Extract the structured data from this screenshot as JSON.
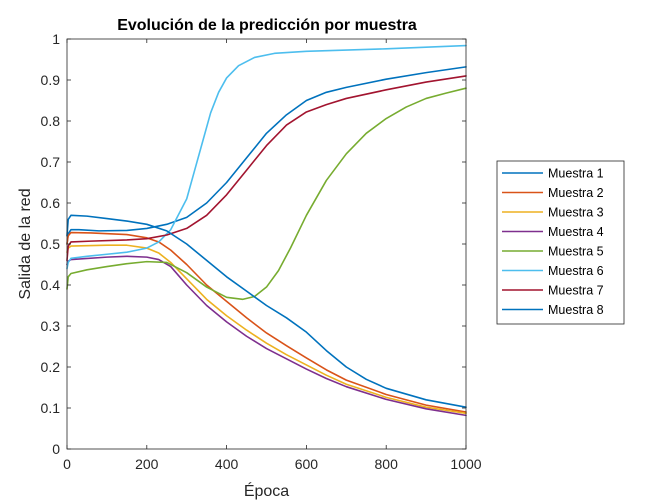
{
  "chart_data": {
    "type": "line",
    "title": "Evolución de la predicción por muestra",
    "xlabel": "Época",
    "ylabel": "Salida de la red",
    "xlim": [
      0,
      1000
    ],
    "ylim": [
      0,
      1
    ],
    "xticks": [
      "0",
      "200",
      "400",
      "600",
      "800",
      "1000"
    ],
    "yticks": [
      "0",
      "0.1",
      "0.2",
      "0.3",
      "0.4",
      "0.5",
      "0.6",
      "0.7",
      "0.8",
      "0.9",
      "1"
    ],
    "grid": false,
    "legend_position": "right",
    "series": [
      {
        "name": "Muestra 1",
        "color": "#0072BD",
        "points": [
          [
            0,
            0.5
          ],
          [
            3,
            0.525
          ],
          [
            10,
            0.535
          ],
          [
            30,
            0.535
          ],
          [
            80,
            0.532
          ],
          [
            150,
            0.533
          ],
          [
            200,
            0.538
          ],
          [
            250,
            0.548
          ],
          [
            300,
            0.565
          ],
          [
            350,
            0.6
          ],
          [
            400,
            0.65
          ],
          [
            450,
            0.71
          ],
          [
            500,
            0.77
          ],
          [
            550,
            0.815
          ],
          [
            600,
            0.85
          ],
          [
            650,
            0.87
          ],
          [
            700,
            0.882
          ],
          [
            800,
            0.902
          ],
          [
            900,
            0.918
          ],
          [
            1000,
            0.932
          ]
        ]
      },
      {
        "name": "Muestra 2",
        "color": "#D95319",
        "points": [
          [
            0,
            0.5
          ],
          [
            3,
            0.52
          ],
          [
            10,
            0.528
          ],
          [
            60,
            0.527
          ],
          [
            150,
            0.523
          ],
          [
            200,
            0.515
          ],
          [
            230,
            0.505
          ],
          [
            260,
            0.485
          ],
          [
            300,
            0.45
          ],
          [
            350,
            0.4
          ],
          [
            400,
            0.36
          ],
          [
            450,
            0.32
          ],
          [
            500,
            0.283
          ],
          [
            550,
            0.252
          ],
          [
            600,
            0.222
          ],
          [
            650,
            0.193
          ],
          [
            700,
            0.168
          ],
          [
            800,
            0.133
          ],
          [
            900,
            0.107
          ],
          [
            1000,
            0.09
          ]
        ]
      },
      {
        "name": "Muestra 3",
        "color": "#EDB120",
        "points": [
          [
            0,
            0.48
          ],
          [
            3,
            0.49
          ],
          [
            10,
            0.495
          ],
          [
            100,
            0.497
          ],
          [
            150,
            0.497
          ],
          [
            200,
            0.49
          ],
          [
            230,
            0.478
          ],
          [
            260,
            0.455
          ],
          [
            300,
            0.415
          ],
          [
            350,
            0.365
          ],
          [
            400,
            0.325
          ],
          [
            450,
            0.29
          ],
          [
            500,
            0.258
          ],
          [
            550,
            0.23
          ],
          [
            600,
            0.205
          ],
          [
            650,
            0.18
          ],
          [
            700,
            0.158
          ],
          [
            800,
            0.126
          ],
          [
            900,
            0.102
          ],
          [
            1000,
            0.087
          ]
        ]
      },
      {
        "name": "Muestra 4",
        "color": "#7E2F8E",
        "points": [
          [
            0,
            0.45
          ],
          [
            3,
            0.458
          ],
          [
            10,
            0.462
          ],
          [
            100,
            0.468
          ],
          [
            150,
            0.47
          ],
          [
            200,
            0.468
          ],
          [
            230,
            0.462
          ],
          [
            260,
            0.445
          ],
          [
            300,
            0.4
          ],
          [
            350,
            0.35
          ],
          [
            400,
            0.31
          ],
          [
            450,
            0.275
          ],
          [
            500,
            0.245
          ],
          [
            550,
            0.22
          ],
          [
            600,
            0.195
          ],
          [
            650,
            0.172
          ],
          [
            700,
            0.152
          ],
          [
            800,
            0.121
          ],
          [
            900,
            0.098
          ],
          [
            1000,
            0.082
          ]
        ]
      },
      {
        "name": "Muestra 5",
        "color": "#77AC30",
        "points": [
          [
            0,
            0.39
          ],
          [
            3,
            0.42
          ],
          [
            10,
            0.428
          ],
          [
            50,
            0.437
          ],
          [
            100,
            0.445
          ],
          [
            150,
            0.452
          ],
          [
            200,
            0.457
          ],
          [
            250,
            0.455
          ],
          [
            300,
            0.43
          ],
          [
            350,
            0.395
          ],
          [
            400,
            0.37
          ],
          [
            440,
            0.365
          ],
          [
            470,
            0.372
          ],
          [
            500,
            0.395
          ],
          [
            530,
            0.435
          ],
          [
            560,
            0.49
          ],
          [
            600,
            0.57
          ],
          [
            650,
            0.655
          ],
          [
            700,
            0.72
          ],
          [
            750,
            0.77
          ],
          [
            800,
            0.806
          ],
          [
            850,
            0.834
          ],
          [
            900,
            0.855
          ],
          [
            950,
            0.868
          ],
          [
            1000,
            0.88
          ]
        ]
      },
      {
        "name": "Muestra 6",
        "color": "#4DBEEE",
        "points": [
          [
            0,
            0.44
          ],
          [
            3,
            0.455
          ],
          [
            10,
            0.465
          ],
          [
            50,
            0.47
          ],
          [
            100,
            0.475
          ],
          [
            150,
            0.48
          ],
          [
            200,
            0.49
          ],
          [
            230,
            0.505
          ],
          [
            260,
            0.535
          ],
          [
            300,
            0.61
          ],
          [
            320,
            0.68
          ],
          [
            340,
            0.75
          ],
          [
            360,
            0.82
          ],
          [
            380,
            0.87
          ],
          [
            400,
            0.905
          ],
          [
            430,
            0.935
          ],
          [
            470,
            0.955
          ],
          [
            520,
            0.965
          ],
          [
            600,
            0.97
          ],
          [
            700,
            0.973
          ],
          [
            800,
            0.976
          ],
          [
            900,
            0.98
          ],
          [
            1000,
            0.984
          ]
        ]
      },
      {
        "name": "Muestra 7",
        "color": "#A2142F",
        "points": [
          [
            0,
            0.46
          ],
          [
            3,
            0.495
          ],
          [
            10,
            0.505
          ],
          [
            60,
            0.507
          ],
          [
            150,
            0.51
          ],
          [
            200,
            0.513
          ],
          [
            250,
            0.522
          ],
          [
            300,
            0.538
          ],
          [
            350,
            0.57
          ],
          [
            400,
            0.62
          ],
          [
            450,
            0.68
          ],
          [
            500,
            0.74
          ],
          [
            550,
            0.79
          ],
          [
            600,
            0.822
          ],
          [
            650,
            0.84
          ],
          [
            700,
            0.855
          ],
          [
            800,
            0.876
          ],
          [
            900,
            0.895
          ],
          [
            1000,
            0.91
          ]
        ]
      },
      {
        "name": "Muestra 8",
        "color": "#0072BD",
        "points": [
          [
            0,
            0.52
          ],
          [
            3,
            0.56
          ],
          [
            10,
            0.57
          ],
          [
            50,
            0.568
          ],
          [
            100,
            0.562
          ],
          [
            150,
            0.556
          ],
          [
            200,
            0.548
          ],
          [
            250,
            0.532
          ],
          [
            300,
            0.5
          ],
          [
            350,
            0.46
          ],
          [
            400,
            0.42
          ],
          [
            450,
            0.385
          ],
          [
            500,
            0.35
          ],
          [
            550,
            0.32
          ],
          [
            600,
            0.285
          ],
          [
            650,
            0.24
          ],
          [
            700,
            0.2
          ],
          [
            750,
            0.17
          ],
          [
            800,
            0.148
          ],
          [
            900,
            0.12
          ],
          [
            1000,
            0.102
          ]
        ]
      }
    ]
  }
}
